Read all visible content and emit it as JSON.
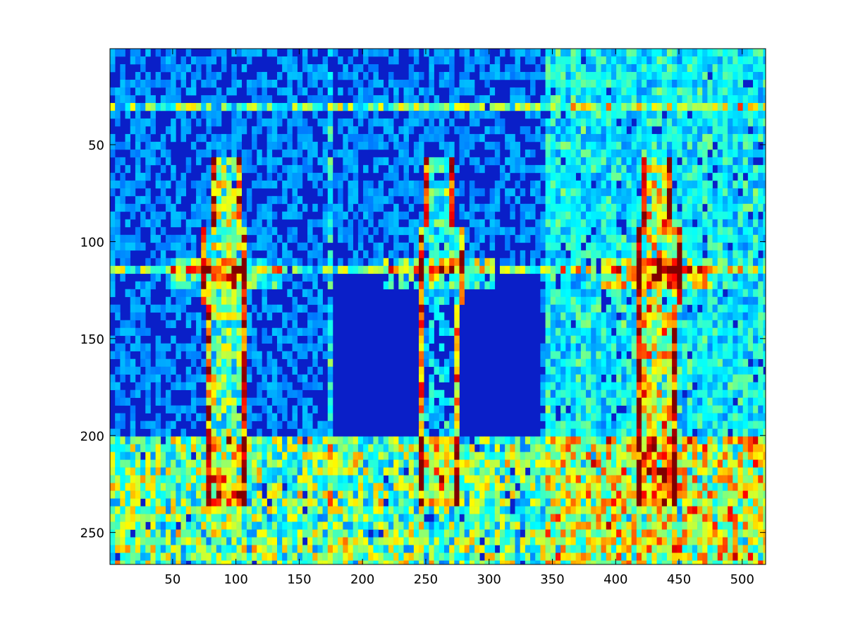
{
  "chart_data": {
    "type": "heatmap",
    "title": "",
    "xlabel": "",
    "ylabel": "",
    "image_size": {
      "columns": 518,
      "rows": 266
    },
    "xlim": [
      0.5,
      518.5
    ],
    "ylim": [
      0.5,
      266.5
    ],
    "y_direction": "reversed",
    "x_ticks": [
      50,
      100,
      150,
      200,
      250,
      300,
      350,
      400,
      450,
      500
    ],
    "y_ticks": [
      50,
      100,
      150,
      200,
      250
    ],
    "colormap": "jet",
    "colormap_stops": [
      "#00008f",
      "#0000ff",
      "#00ffff",
      "#ffff00",
      "#ff0000",
      "#800000"
    ],
    "background_color": "#0a1fc8",
    "grid": false,
    "legend": "none",
    "panel_boundaries_x": [
      173,
      346
    ],
    "figures": [
      {
        "x_center": 90,
        "y_top": 55,
        "y_bottom": 235
      },
      {
        "x_center": 260,
        "y_top": 55,
        "y_bottom": 235
      },
      {
        "x_center": 432,
        "y_top": 55,
        "y_bottom": 235
      }
    ]
  }
}
